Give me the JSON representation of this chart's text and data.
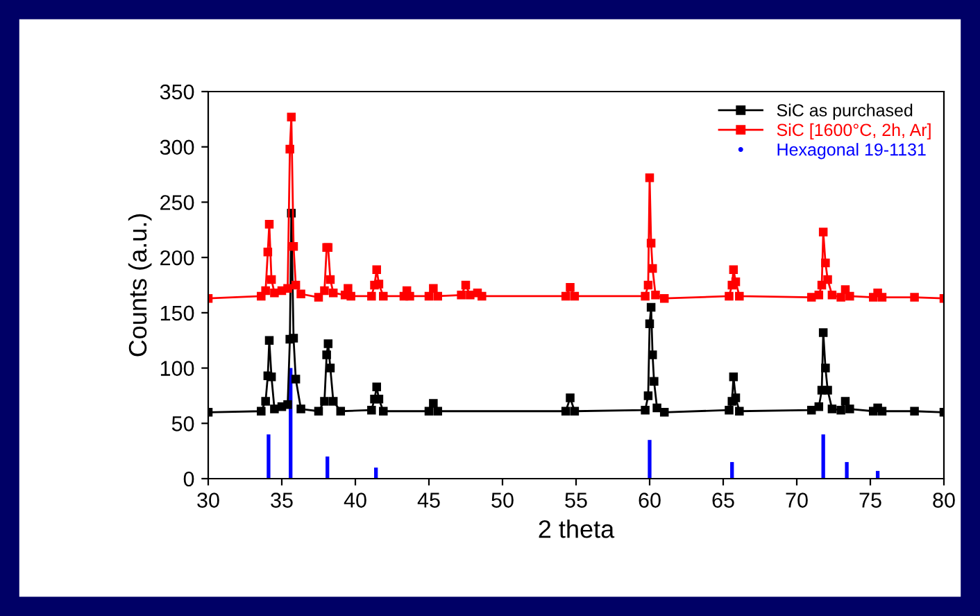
{
  "chart_data": {
    "type": "line",
    "xlabel": "2 theta",
    "ylabel": "Counts (a.u.)",
    "xlim": [
      30,
      80
    ],
    "xticks": [
      30,
      35,
      40,
      45,
      50,
      55,
      60,
      65,
      70,
      75,
      80
    ],
    "ylim": [
      0,
      350
    ],
    "yticks": [
      0,
      50,
      100,
      150,
      200,
      250,
      300,
      350
    ],
    "grid": false,
    "legend": "top right",
    "marker": "square",
    "line_style": "solid",
    "series": [
      {
        "name": "SiC as purchased",
        "color": "#000000",
        "x": [
          30,
          33.6,
          33.9,
          34.05,
          34.15,
          34.3,
          34.5,
          35.0,
          35.4,
          35.55,
          35.65,
          35.8,
          35.95,
          36.3,
          37.5,
          37.9,
          38.05,
          38.15,
          38.3,
          38.5,
          39,
          41.1,
          41.3,
          41.45,
          41.6,
          41.9,
          45.0,
          45.3,
          45.6,
          54.3,
          54.6,
          54.9,
          59.7,
          59.9,
          60.0,
          60.1,
          60.2,
          60.3,
          60.5,
          61,
          65.4,
          65.6,
          65.7,
          65.85,
          66.1,
          71.0,
          71.5,
          71.7,
          71.8,
          71.95,
          72.1,
          72.4,
          73.0,
          73.3,
          73.6,
          75.2,
          75.5,
          75.8,
          78,
          80
        ],
        "values": [
          60,
          61,
          70,
          93,
          125,
          92,
          63,
          65,
          67,
          126,
          240,
          127,
          90,
          63,
          61,
          70,
          112,
          122,
          100,
          70,
          61,
          62,
          72,
          83,
          72,
          61,
          61,
          68,
          61,
          61,
          73,
          61,
          62,
          75,
          140,
          155,
          112,
          88,
          64,
          60,
          62,
          70,
          92,
          73,
          61,
          62,
          65,
          80,
          132,
          100,
          80,
          63,
          62,
          70,
          63,
          61,
          64,
          61,
          61,
          60
        ]
      },
      {
        "name": "SiC [1600°C, 2h, Ar]",
        "color": "#ff0000",
        "x": [
          30,
          33.6,
          33.9,
          34.05,
          34.15,
          34.3,
          34.5,
          35.0,
          35.4,
          35.55,
          35.65,
          35.8,
          35.95,
          36.3,
          37.5,
          37.9,
          38.05,
          38.15,
          38.3,
          38.5,
          39.3,
          39.5,
          39.7,
          41.1,
          41.3,
          41.45,
          41.6,
          41.9,
          43.3,
          43.5,
          43.7,
          45.0,
          45.3,
          45.6,
          47.2,
          47.5,
          47.8,
          48.3,
          48.6,
          54.3,
          54.6,
          54.9,
          59.7,
          59.9,
          60.0,
          60.1,
          60.2,
          60.4,
          61,
          65.4,
          65.6,
          65.7,
          65.85,
          66.1,
          71.0,
          71.5,
          71.7,
          71.8,
          71.95,
          72.1,
          72.4,
          73.0,
          73.3,
          73.6,
          75.2,
          75.5,
          75.8,
          78,
          80
        ],
        "values": [
          163,
          165,
          170,
          205,
          230,
          180,
          168,
          170,
          172,
          298,
          327,
          210,
          175,
          167,
          164,
          170,
          209,
          209,
          180,
          168,
          166,
          172,
          165,
          165,
          175,
          189,
          176,
          165,
          165,
          170,
          165,
          165,
          172,
          165,
          166,
          175,
          166,
          168,
          165,
          165,
          173,
          165,
          165,
          175,
          272,
          213,
          190,
          166,
          163,
          165,
          175,
          189,
          178,
          165,
          164,
          166,
          175,
          223,
          195,
          180,
          166,
          164,
          171,
          165,
          164,
          168,
          164,
          164,
          163
        ]
      },
      {
        "name": "Hexagonal 19-1131",
        "color": "#0000ff",
        "type": "bar",
        "x": [
          34.1,
          35.6,
          38.1,
          41.4,
          60.0,
          65.6,
          71.8,
          73.4,
          75.5
        ],
        "values": [
          40,
          100,
          20,
          10,
          35,
          15,
          40,
          15,
          7
        ]
      }
    ]
  }
}
